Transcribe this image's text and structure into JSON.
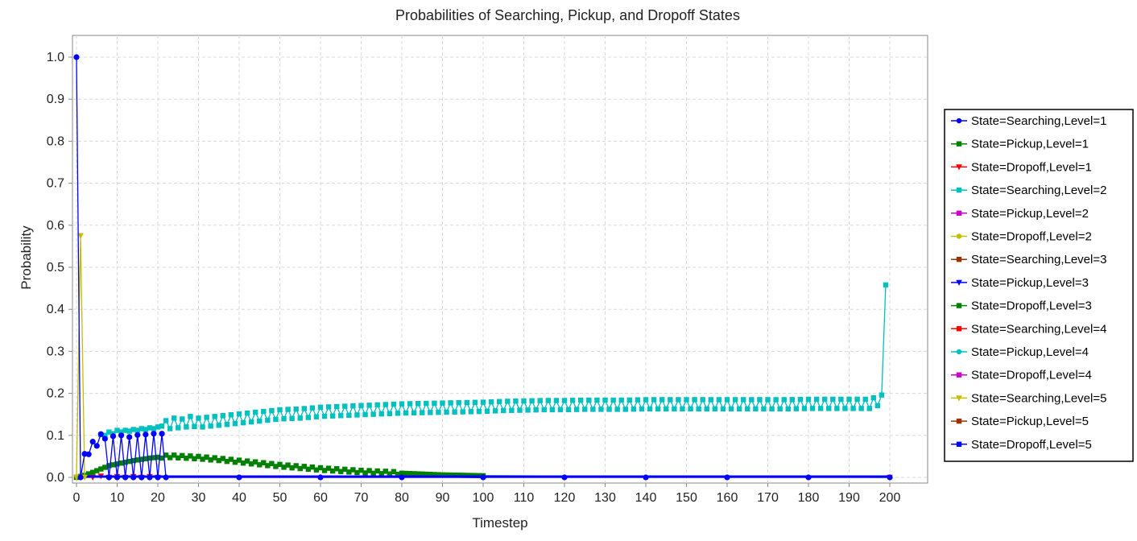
{
  "chart_data": {
    "type": "line",
    "title": "Probabilities of Searching, Pickup, and Dropoff States",
    "xlabel": "Timestep",
    "ylabel": "Probability",
    "xlim": [
      0,
      200
    ],
    "ylim": [
      0,
      1.0
    ],
    "x_ticks": [
      0,
      10,
      20,
      30,
      40,
      50,
      60,
      70,
      80,
      90,
      100,
      110,
      120,
      130,
      140,
      150,
      160,
      170,
      180,
      190,
      200
    ],
    "y_ticks": [
      0.0,
      0.1,
      0.2,
      0.3,
      0.4,
      0.5,
      0.6,
      0.7,
      0.8,
      0.9,
      1.0
    ],
    "y_tick_labels": [
      "0.0",
      "0.1",
      "0.2",
      "0.3",
      "0.4",
      "0.5",
      "0.6",
      "0.7",
      "0.8",
      "0.9",
      "1.0"
    ],
    "grid": true,
    "legend_position": "right",
    "series": [
      {
        "name": "State=Searching,Level=1",
        "color": "#0000ff",
        "marker": "circle",
        "x": [
          0,
          1,
          2,
          3,
          4,
          5,
          6,
          7,
          8,
          9,
          10,
          11,
          12,
          13,
          14,
          15,
          16,
          17,
          18,
          19,
          20,
          21,
          22,
          40,
          60,
          80,
          100,
          120,
          140,
          160,
          180,
          200
        ],
        "y": [
          1.0,
          0.0,
          0.056,
          0.055,
          0.085,
          0.075,
          0.103,
          0.092,
          0.0,
          0.098,
          0.0,
          0.1,
          0.0,
          0.096,
          0.0,
          0.101,
          0.0,
          0.102,
          0.0,
          0.104,
          0.0,
          0.104,
          0.0,
          0.0,
          0.0,
          0.0,
          0.0,
          0.0,
          0.0,
          0.0,
          0.0,
          0.0
        ]
      },
      {
        "name": "State=Pickup,Level=1",
        "color": "#008000",
        "marker": "square",
        "x": [],
        "y": []
      },
      {
        "name": "State=Dropoff,Level=1",
        "color": "#ff0000",
        "marker": "triangle-down",
        "x": [
          0,
          4,
          6,
          8,
          10,
          12,
          14,
          16,
          18,
          20,
          200
        ],
        "y": [
          0.0,
          0.0,
          0.003,
          0.0,
          0.002,
          0.0,
          0.002,
          0.0,
          0.002,
          0.0,
          0.0
        ]
      },
      {
        "name": "State=Searching,Level=2",
        "color": "#00c0c0",
        "marker": "square",
        "x": [
          6,
          7,
          8,
          9,
          10,
          11,
          12,
          13,
          14,
          15,
          16,
          17,
          18,
          19,
          20,
          22,
          24,
          26,
          28,
          30,
          35,
          40,
          45,
          50,
          55,
          60,
          65,
          70,
          75,
          80,
          85,
          90,
          95,
          100,
          105,
          110,
          115,
          120,
          125,
          130,
          135,
          140,
          145,
          150,
          155,
          160,
          165,
          170,
          175,
          180,
          185,
          190,
          195,
          198,
          199
        ],
        "y": [
          0.102,
          0.1,
          0.108,
          0.104,
          0.112,
          0.108,
          0.112,
          0.11,
          0.114,
          0.112,
          0.116,
          0.114,
          0.118,
          0.116,
          0.12,
          0.124,
          0.13,
          0.128,
          0.134,
          0.13,
          0.135,
          0.14,
          0.145,
          0.15,
          0.152,
          0.156,
          0.158,
          0.16,
          0.162,
          0.164,
          0.165,
          0.166,
          0.167,
          0.168,
          0.17,
          0.171,
          0.172,
          0.172,
          0.173,
          0.173,
          0.173,
          0.174,
          0.174,
          0.174,
          0.174,
          0.174,
          0.174,
          0.174,
          0.174,
          0.175,
          0.175,
          0.175,
          0.175,
          0.185,
          0.458
        ]
      },
      {
        "name": "State=Pickup,Level=2",
        "color": "#cc00cc",
        "marker": "square",
        "x": [],
        "y": []
      },
      {
        "name": "State=Dropoff,Level=2",
        "color": "#c0c000",
        "marker": "circle",
        "x": [],
        "y": []
      },
      {
        "name": "State=Searching,Level=3",
        "color": "#993300",
        "marker": "square",
        "x": [],
        "y": []
      },
      {
        "name": "State=Pickup,Level=3",
        "color": "#0000ff",
        "marker": "triangle-down",
        "x": [],
        "y": []
      },
      {
        "name": "State=Dropoff,Level=3",
        "color": "#008000",
        "marker": "square",
        "x": [
          0,
          2,
          4,
          6,
          8,
          10,
          12,
          14,
          16,
          18,
          20,
          22,
          24,
          26,
          28,
          30,
          35,
          40,
          45,
          50,
          55,
          60,
          65,
          70,
          75,
          80,
          85,
          90,
          95,
          100,
          110,
          120,
          140,
          160,
          180,
          200
        ],
        "y": [
          0.0,
          0.005,
          0.012,
          0.02,
          0.028,
          0.032,
          0.036,
          0.04,
          0.043,
          0.046,
          0.048,
          0.05,
          0.05,
          0.049,
          0.048,
          0.047,
          0.043,
          0.038,
          0.033,
          0.028,
          0.024,
          0.02,
          0.017,
          0.014,
          0.012,
          0.01,
          0.008,
          0.006,
          0.005,
          0.004,
          0.003,
          0.002,
          0.001,
          0.0,
          0.0,
          0.0
        ]
      },
      {
        "name": "State=Searching,Level=4",
        "color": "#ff0000",
        "marker": "square",
        "x": [],
        "y": []
      },
      {
        "name": "State=Pickup,Level=4",
        "color": "#00c0c0",
        "marker": "circle",
        "x": [],
        "y": []
      },
      {
        "name": "State=Dropoff,Level=4",
        "color": "#cc00cc",
        "marker": "square",
        "x": [],
        "y": []
      },
      {
        "name": "State=Searching,Level=5",
        "color": "#c0c000",
        "marker": "triangle-down",
        "x": [
          0,
          1,
          2
        ],
        "y": [
          0.0,
          0.575,
          0.0
        ]
      },
      {
        "name": "State=Pickup,Level=5",
        "color": "#993300",
        "marker": "square",
        "x": [],
        "y": []
      },
      {
        "name": "State=Dropoff,Level=5",
        "color": "#0000ff",
        "marker": "square",
        "x": [
          0,
          50,
          100,
          150,
          200
        ],
        "y": [
          0.002,
          0.002,
          0.002,
          0.002,
          0.002
        ]
      }
    ]
  }
}
